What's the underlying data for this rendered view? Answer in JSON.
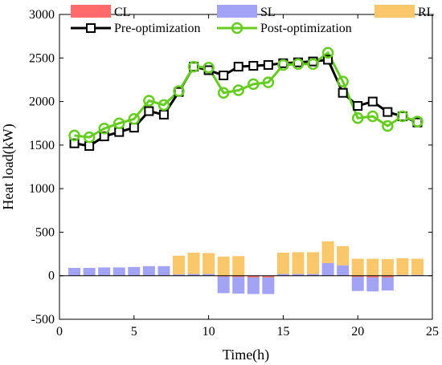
{
  "chart_data": {
    "type": "bar",
    "xlabel": "Time(h)",
    "ylabel": "Heat load(kW)",
    "xlim": [
      0,
      25
    ],
    "ylim": [
      -500,
      3000
    ],
    "xticks": [
      0,
      5,
      10,
      15,
      20,
      25
    ],
    "yticks": [
      -500,
      0,
      500,
      1000,
      1500,
      2000,
      2500,
      3000
    ],
    "grid": false,
    "legend_position": "top",
    "hours": [
      1,
      2,
      3,
      4,
      5,
      6,
      7,
      8,
      9,
      10,
      11,
      12,
      13,
      14,
      15,
      16,
      17,
      18,
      19,
      20,
      21,
      22,
      23,
      24
    ],
    "bar_series": [
      {
        "name": "CL",
        "color": "#ff6b6b",
        "values": [
          0,
          0,
          0,
          0,
          0,
          0,
          0,
          0,
          0,
          0,
          -10,
          -15,
          -20,
          -20,
          0,
          0,
          0,
          0,
          0,
          -15,
          -20,
          -20,
          0,
          0
        ]
      },
      {
        "name": "SL",
        "color": "#a3a3f5",
        "values": [
          90,
          90,
          95,
          95,
          100,
          110,
          110,
          15,
          20,
          20,
          -190,
          -190,
          -190,
          -190,
          20,
          20,
          20,
          145,
          120,
          -160,
          -160,
          -150,
          10,
          10
        ]
      },
      {
        "name": "RL",
        "color": "#fac76a",
        "values": [
          0,
          0,
          0,
          0,
          0,
          0,
          0,
          215,
          245,
          240,
          220,
          225,
          0,
          0,
          245,
          250,
          250,
          250,
          220,
          195,
          195,
          190,
          190,
          185
        ]
      }
    ],
    "line_series": [
      {
        "name": "Pre-optimization",
        "color": "#000000",
        "marker": "square",
        "values": [
          1520,
          1490,
          1600,
          1650,
          1700,
          1890,
          1850,
          2110,
          2400,
          2360,
          2300,
          2400,
          2410,
          2420,
          2440,
          2450,
          2460,
          2480,
          2100,
          1950,
          2000,
          1880,
          1830,
          1760
        ]
      },
      {
        "name": "Post-optimization",
        "color": "#66cc22",
        "marker": "circle",
        "values": [
          1610,
          1590,
          1690,
          1750,
          1800,
          2010,
          1960,
          2120,
          2400,
          2390,
          2100,
          2130,
          2200,
          2220,
          2420,
          2430,
          2430,
          2560,
          2230,
          1810,
          1830,
          1720,
          1830,
          1770
        ]
      }
    ]
  }
}
